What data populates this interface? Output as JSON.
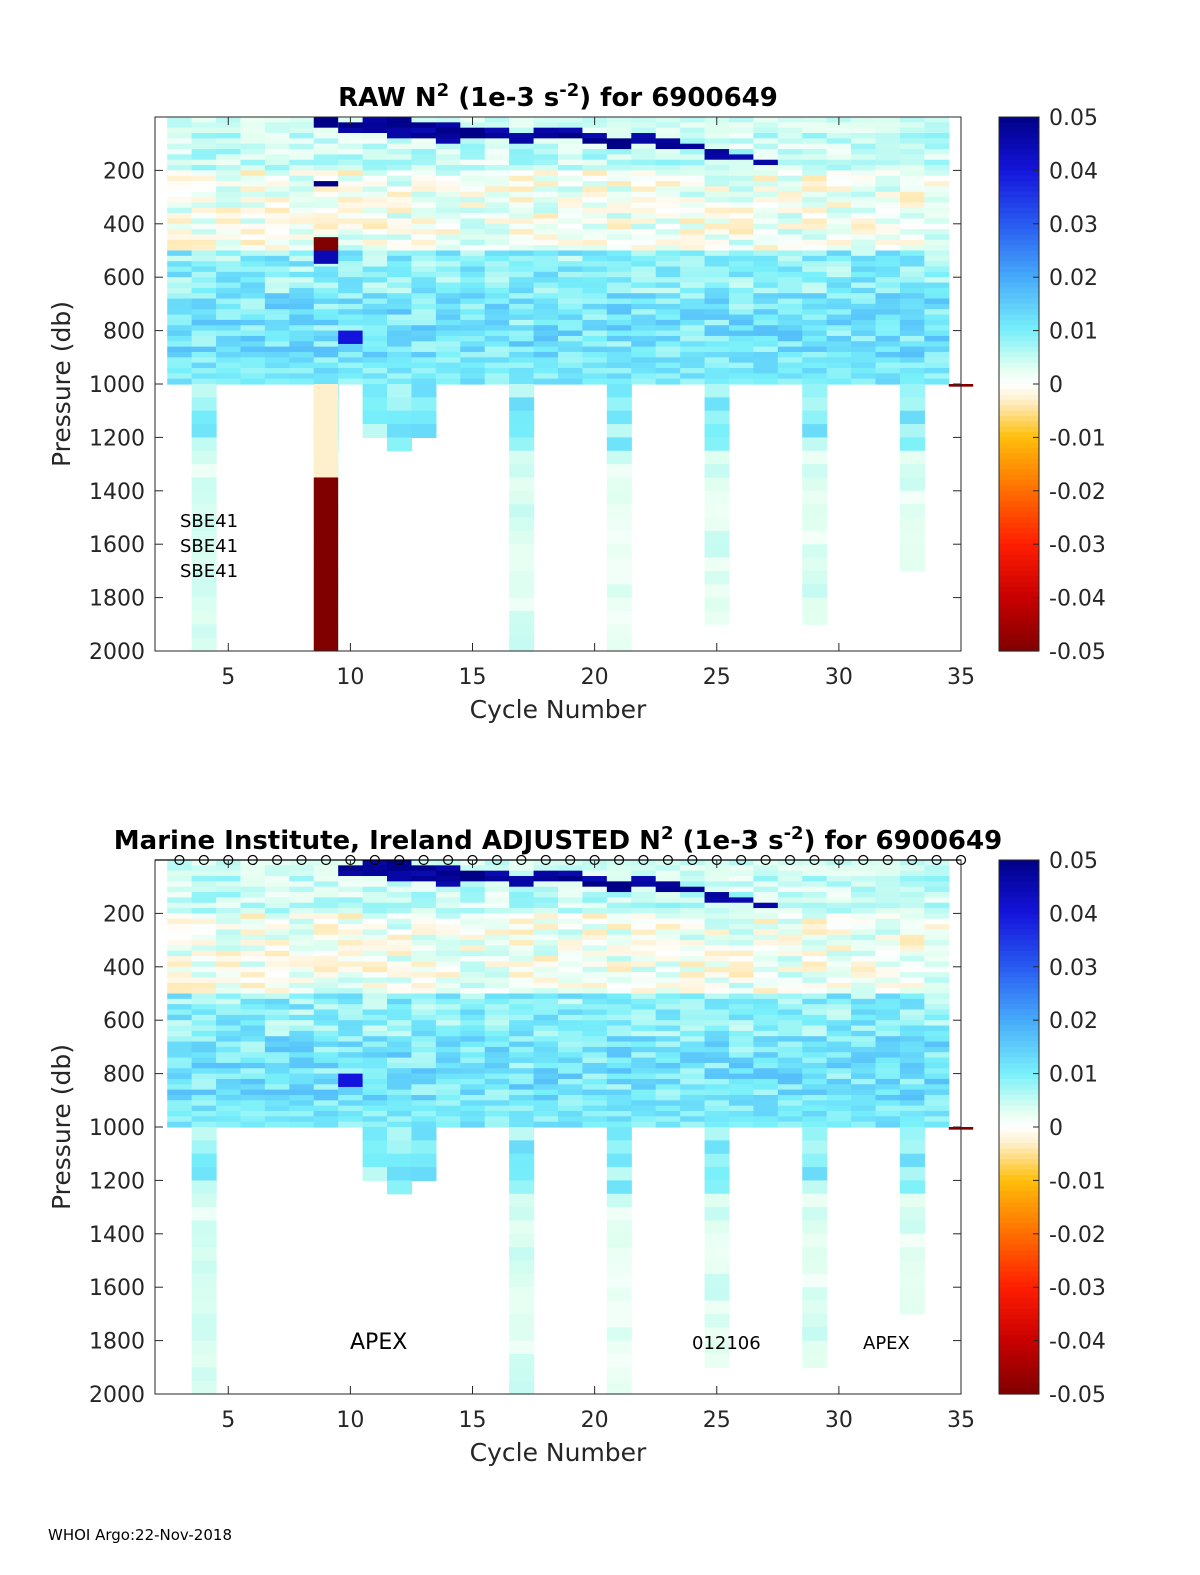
{
  "footer": "WHOI Argo:22-Nov-2018",
  "chart_data": [
    {
      "type": "heatmap",
      "title_parts": [
        "RAW N",
        "2",
        " (1e-3 s",
        "-2",
        ") for 6900649"
      ],
      "xlabel": "Cycle Number",
      "ylabel": "Pressure (db)",
      "xlim": [
        2,
        35
      ],
      "ylim": [
        2000,
        0
      ],
      "xticks": [
        5,
        10,
        15,
        20,
        25,
        30,
        35
      ],
      "yticks": [
        200,
        400,
        600,
        800,
        1000,
        1200,
        1400,
        1600,
        1800,
        2000
      ],
      "colorbar": {
        "range": [
          -0.05,
          0.05
        ],
        "colormap": "jet-with-white-center",
        "ticks": [
          "0.05",
          "0.04",
          "0.03",
          "0.02",
          "0.01",
          "0",
          "-0.01",
          "-0.02",
          "-0.03",
          "-0.04",
          "-0.05"
        ]
      },
      "cycles": [
        3,
        4,
        5,
        6,
        7,
        8,
        9,
        10,
        11,
        12,
        13,
        14,
        15,
        16,
        17,
        18,
        19,
        20,
        21,
        22,
        23,
        24,
        25,
        26,
        27,
        28,
        29,
        30,
        31,
        32,
        33,
        34
      ],
      "profile_max_pressure": [
        1000,
        2000,
        1000,
        1000,
        1000,
        1000,
        2000,
        1000,
        1200,
        1250,
        1200,
        1000,
        1000,
        1000,
        2000,
        1000,
        1000,
        1000,
        2000,
        1000,
        1000,
        1000,
        1880,
        1000,
        1000,
        1000,
        1880,
        1000,
        1000,
        1000,
        1670,
        1000
      ],
      "features": [
        {
          "cycle": 9,
          "pressure": [
            0,
            40
          ],
          "value": 0.05
        },
        {
          "cycle": 9,
          "pressure": [
            240,
            260
          ],
          "value": 0.05
        },
        {
          "cycle": 9,
          "pressure": [
            450,
            500
          ],
          "value": -0.05
        },
        {
          "cycle": 9,
          "pressure": [
            500,
            550
          ],
          "value": 0.045
        },
        {
          "cycle": 9,
          "pressure": [
            1000,
            1350
          ],
          "value": -0.003
        },
        {
          "cycle": 9,
          "pressure": [
            1350,
            2000
          ],
          "value": -0.05
        },
        {
          "cycle": 10,
          "pressure": [
            800,
            850
          ],
          "value": 0.04
        },
        {
          "cycle": 35,
          "pressure": [
            1000,
            1010
          ],
          "value": -0.05
        }
      ],
      "annotations": [
        "SBE41",
        "SBE41",
        "SBE41"
      ]
    },
    {
      "type": "heatmap",
      "title_parts": [
        "Marine Institute, Ireland  ADJUSTED N",
        "2",
        " (1e-3 s",
        "-2",
        ") for 6900649"
      ],
      "xlabel": "Cycle Number",
      "ylabel": "Pressure (db)",
      "xlim": [
        2,
        35
      ],
      "ylim": [
        2000,
        0
      ],
      "xticks": [
        5,
        10,
        15,
        20,
        25,
        30,
        35
      ],
      "yticks": [
        200,
        400,
        600,
        800,
        1000,
        1200,
        1400,
        1600,
        1800,
        2000
      ],
      "colorbar": {
        "range": [
          -0.05,
          0.05
        ],
        "colormap": "jet-with-white-center",
        "ticks": [
          "0.05",
          "0.04",
          "0.03",
          "0.02",
          "0.01",
          "0",
          "-0.01",
          "-0.02",
          "-0.03",
          "-0.04",
          "-0.05"
        ]
      },
      "cycles": [
        3,
        4,
        5,
        6,
        7,
        8,
        9,
        10,
        11,
        12,
        13,
        14,
        15,
        16,
        17,
        18,
        19,
        20,
        21,
        22,
        23,
        24,
        25,
        26,
        27,
        28,
        29,
        30,
        31,
        32,
        33,
        34
      ],
      "profile_max_pressure": [
        1000,
        2000,
        1000,
        1000,
        1000,
        1000,
        1000,
        1000,
        1200,
        1250,
        1200,
        1000,
        1000,
        1000,
        2000,
        1000,
        1000,
        1000,
        2000,
        1000,
        1000,
        1000,
        1880,
        1000,
        1000,
        1000,
        1880,
        1000,
        1000,
        1000,
        1670,
        1000
      ],
      "features": [
        {
          "cycle": 10,
          "pressure": [
            800,
            850
          ],
          "value": 0.04
        },
        {
          "cycle": 35,
          "pressure": [
            1000,
            1010
          ],
          "value": -0.05
        }
      ],
      "markers": {
        "symbol": "o",
        "pressure": 0,
        "cycles": [
          3,
          4,
          5,
          6,
          7,
          8,
          9,
          10,
          11,
          12,
          13,
          14,
          15,
          16,
          17,
          18,
          19,
          20,
          21,
          22,
          23,
          24,
          25,
          26,
          27,
          28,
          29,
          30,
          31,
          32,
          33,
          34,
          35
        ]
      },
      "annotations": [
        "APEX",
        "012106",
        "APEX"
      ]
    }
  ]
}
